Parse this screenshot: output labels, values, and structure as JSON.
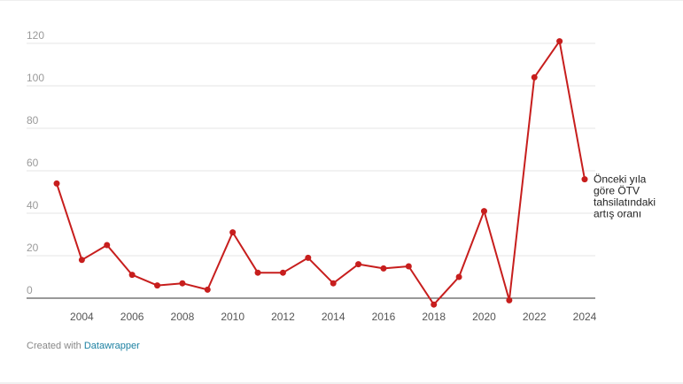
{
  "chart_data": {
    "type": "line",
    "title": "",
    "xlabel": "",
    "ylabel": "",
    "ylim": [
      -5,
      125
    ],
    "xlim": [
      2003,
      2024
    ],
    "y_ticks": [
      0,
      20,
      40,
      60,
      80,
      100,
      120
    ],
    "y_tick_labels": [
      "0",
      "20",
      "40",
      "60",
      "80",
      "100",
      "120"
    ],
    "x_ticks": [
      2004,
      2006,
      2008,
      2010,
      2012,
      2014,
      2016,
      2018,
      2020,
      2022,
      2024
    ],
    "x_tick_labels": [
      "2004",
      "2006",
      "2008",
      "2010",
      "2012",
      "2014",
      "2016",
      "2018",
      "2020",
      "2022",
      "2024"
    ],
    "grid": true,
    "series": [
      {
        "name": "Önceki yıla göre ÖTV tahsilatındaki artış oranı",
        "name_lines": [
          "Önceki yıla",
          "göre ÖTV",
          "tahsilatındaki",
          "artış oranı"
        ],
        "color": "#c71e1d",
        "x": [
          2003,
          2004,
          2005,
          2006,
          2007,
          2008,
          2009,
          2010,
          2011,
          2012,
          2013,
          2014,
          2015,
          2016,
          2017,
          2018,
          2019,
          2020,
          2021,
          2022,
          2023,
          2024
        ],
        "values": [
          54,
          18,
          25,
          11,
          6,
          7,
          4,
          31,
          12,
          12,
          19,
          7,
          16,
          14,
          15,
          -3,
          10,
          41,
          -1,
          104,
          121,
          56
        ]
      }
    ]
  },
  "footer": {
    "credit_prefix": "Created with",
    "credit_link": "Datawrapper"
  },
  "colors": {
    "line": "#c71e1d",
    "grid": "#e6e6e6",
    "baseline": "#333333",
    "link": "#1d81a2"
  }
}
